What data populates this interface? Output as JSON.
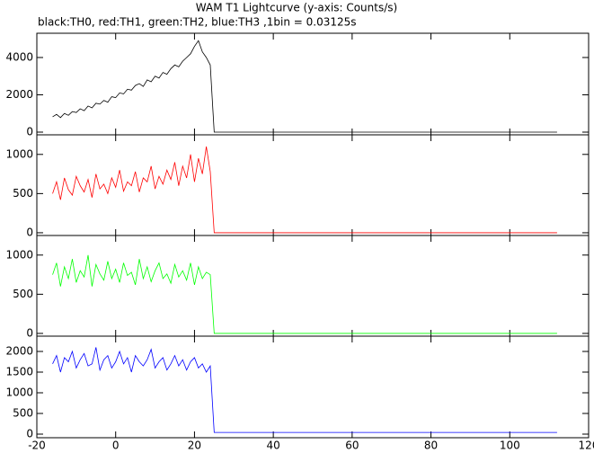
{
  "chart_data": [
    {
      "type": "line",
      "title": "WAM T1 Lightcurve (y-axis: Counts/s)",
      "subtitle": "black:TH0, red:TH1, green:TH2, blue:TH3 ,1bin = 0.03125s",
      "x": [
        -16,
        -15,
        -14,
        -13,
        -12,
        -11,
        -10,
        -9,
        -8,
        -7,
        -6,
        -5,
        -4,
        -3,
        -2,
        -1,
        0,
        1,
        2,
        3,
        4,
        5,
        6,
        7,
        8,
        9,
        10,
        11,
        12,
        13,
        14,
        15,
        16,
        17,
        18,
        19,
        20,
        21,
        22,
        23,
        24,
        25,
        112
      ],
      "series": [
        {
          "color": "#000000",
          "values": [
            820,
            950,
            780,
            1000,
            900,
            1100,
            1050,
            1250,
            1150,
            1400,
            1300,
            1550,
            1500,
            1700,
            1600,
            1900,
            1850,
            2100,
            2050,
            2300,
            2250,
            2500,
            2600,
            2450,
            2800,
            2700,
            3000,
            2900,
            3200,
            3100,
            3400,
            3600,
            3500,
            3800,
            4000,
            4200,
            4600,
            4900,
            4300,
            4000,
            3600,
            0,
            0
          ]
        }
      ],
      "xlim": [
        -20,
        120
      ],
      "ylim": [
        -145,
        5300
      ],
      "yticks": [
        0,
        2000,
        4000
      ]
    },
    {
      "type": "line",
      "x": [
        -16,
        -15,
        -14,
        -13,
        -12,
        -11,
        -10,
        -9,
        -8,
        -7,
        -6,
        -5,
        -4,
        -3,
        -2,
        -1,
        0,
        1,
        2,
        3,
        4,
        5,
        6,
        7,
        8,
        9,
        10,
        11,
        12,
        13,
        14,
        15,
        16,
        17,
        18,
        19,
        20,
        21,
        22,
        23,
        24,
        25,
        112
      ],
      "series": [
        {
          "color": "#ff0000",
          "values": [
            500,
            650,
            420,
            700,
            550,
            480,
            720,
            600,
            520,
            680,
            450,
            750,
            560,
            620,
            500,
            700,
            580,
            800,
            530,
            650,
            600,
            780,
            520,
            700,
            650,
            850,
            560,
            720,
            620,
            800,
            680,
            900,
            600,
            850,
            700,
            1000,
            650,
            950,
            750,
            1100,
            780,
            0,
            0
          ]
        }
      ],
      "xlim": [
        -20,
        120
      ],
      "ylim": [
        -35,
        1250
      ],
      "yticks": [
        0,
        500,
        1000
      ]
    },
    {
      "type": "line",
      "x": [
        -16,
        -15,
        -14,
        -13,
        -12,
        -11,
        -10,
        -9,
        -8,
        -7,
        -6,
        -5,
        -4,
        -3,
        -2,
        -1,
        0,
        1,
        2,
        3,
        4,
        5,
        6,
        7,
        8,
        9,
        10,
        11,
        12,
        13,
        14,
        15,
        16,
        17,
        18,
        19,
        20,
        21,
        22,
        23,
        24,
        25,
        112
      ],
      "series": [
        {
          "color": "#00ff00",
          "values": [
            750,
            900,
            600,
            850,
            700,
            950,
            650,
            800,
            720,
            1000,
            600,
            880,
            760,
            680,
            920,
            700,
            820,
            650,
            900,
            740,
            780,
            620,
            950,
            700,
            850,
            660,
            800,
            900,
            700,
            760,
            640,
            880,
            720,
            800,
            680,
            900,
            620,
            850,
            700,
            780,
            750,
            0,
            0
          ]
        }
      ],
      "xlim": [
        -20,
        120
      ],
      "ylim": [
        -35,
        1250
      ],
      "yticks": [
        0,
        500,
        1000
      ]
    },
    {
      "type": "line",
      "x": [
        -16,
        -15,
        -14,
        -13,
        -12,
        -11,
        -10,
        -9,
        -8,
        -7,
        -6,
        -5,
        -4,
        -3,
        -2,
        -1,
        0,
        1,
        2,
        3,
        4,
        5,
        6,
        7,
        8,
        9,
        10,
        11,
        12,
        13,
        14,
        15,
        16,
        17,
        18,
        19,
        20,
        21,
        22,
        23,
        24,
        25,
        112
      ],
      "series": [
        {
          "color": "#0000ff",
          "values": [
            1700,
            1900,
            1500,
            1850,
            1750,
            2000,
            1600,
            1800,
            1950,
            1650,
            1700,
            2100,
            1550,
            1800,
            1900,
            1600,
            1750,
            2000,
            1700,
            1850,
            1500,
            1900,
            1750,
            1650,
            1800,
            2050,
            1600,
            1750,
            1850,
            1550,
            1700,
            1900,
            1650,
            1800,
            1550,
            1750,
            1850,
            1600,
            1700,
            1500,
            1650,
            40,
            40
          ]
        }
      ],
      "xlim": [
        -20,
        120
      ],
      "ylim": [
        -87,
        2370
      ],
      "yticks": [
        0,
        500,
        1000,
        1500,
        2000
      ],
      "xticks": [
        -20,
        0,
        20,
        40,
        60,
        80,
        100,
        120
      ]
    }
  ]
}
